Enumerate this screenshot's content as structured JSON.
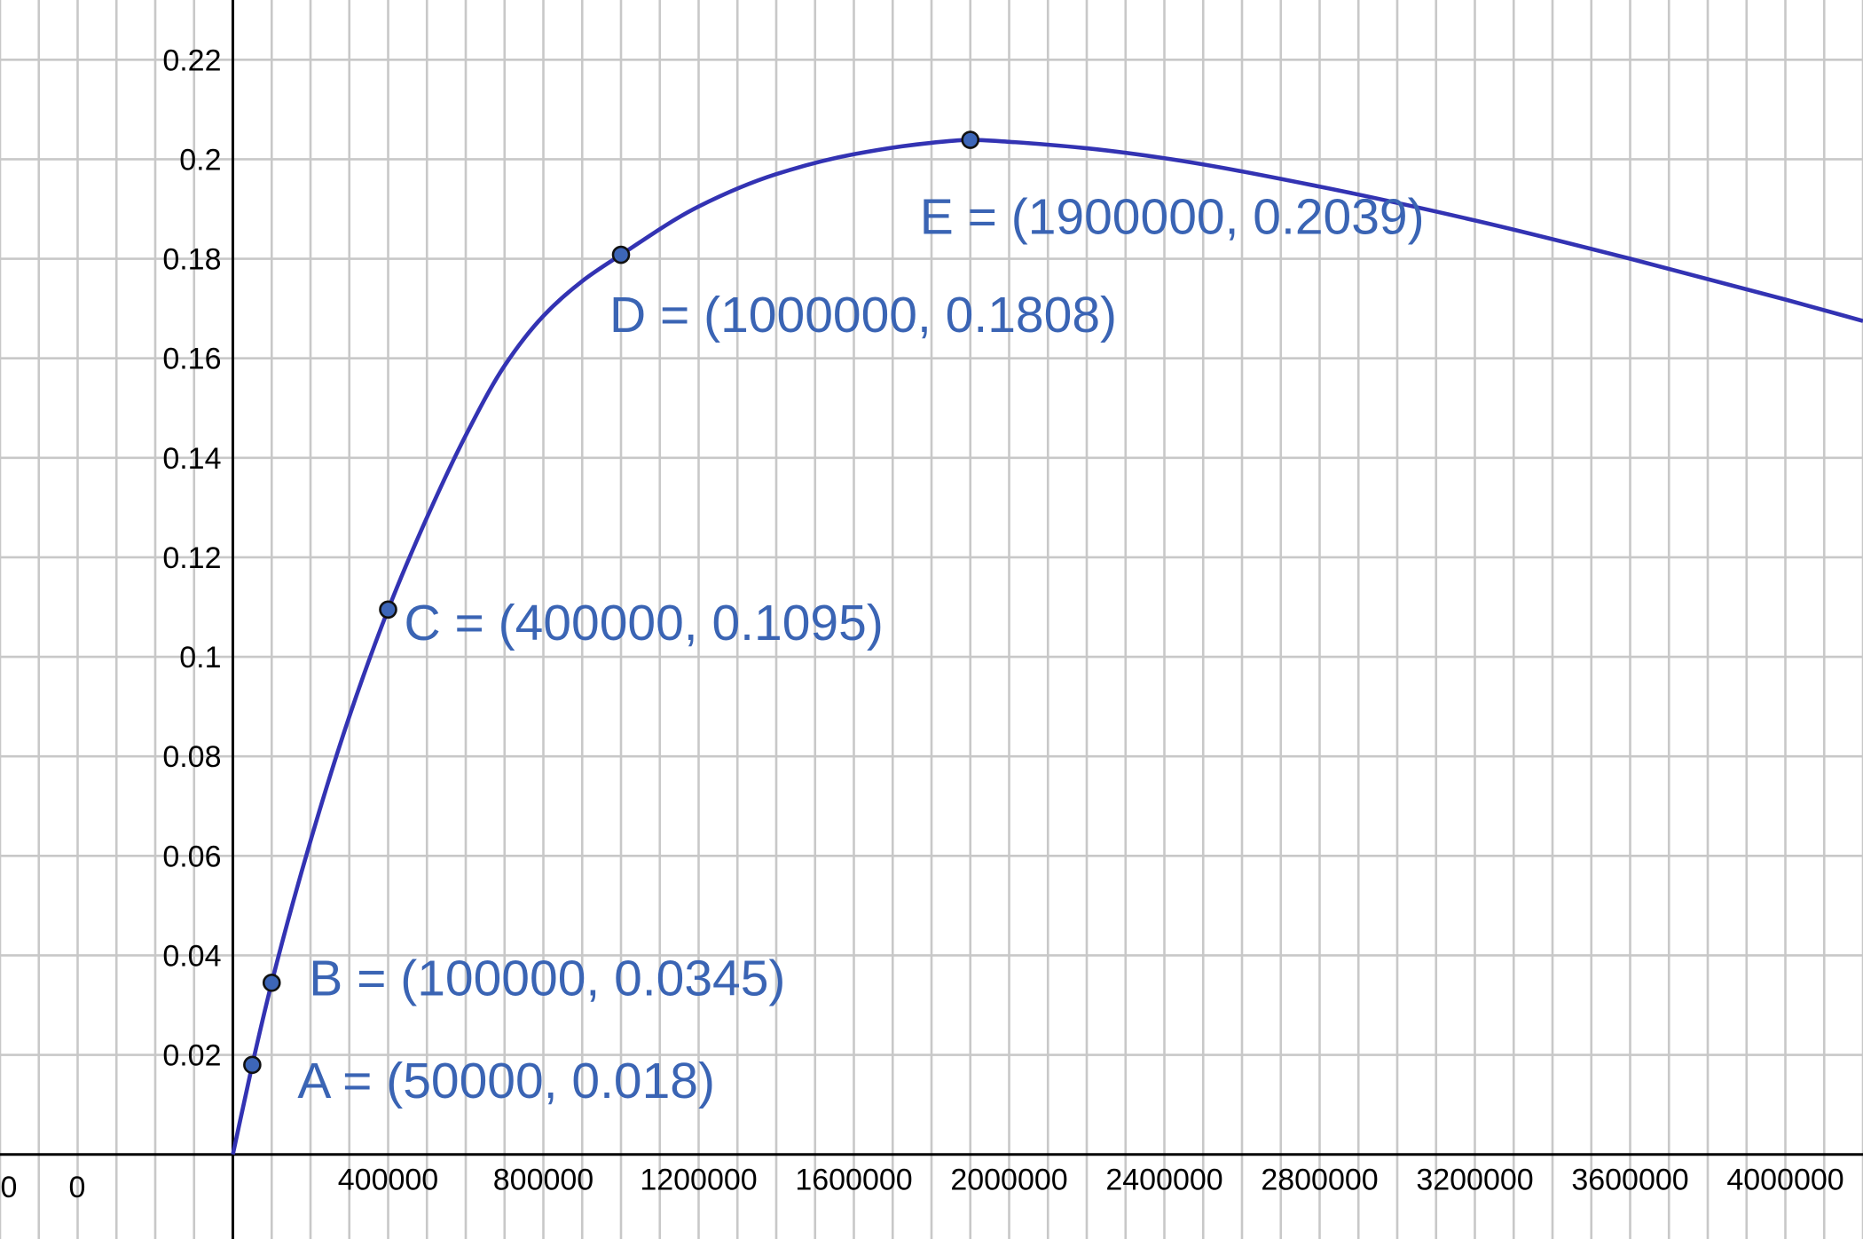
{
  "chart_data": {
    "type": "line",
    "xlim": [
      -600000,
      4200000
    ],
    "ylim": [
      -0.017,
      0.232
    ],
    "x_ticks": [
      400000,
      800000,
      1200000,
      1600000,
      2000000,
      2400000,
      2800000,
      3200000,
      3600000,
      4000000
    ],
    "x_tick_labels": [
      "400000",
      "800000",
      "1200000",
      "1600000",
      "2000000",
      "2400000",
      "2800000",
      "3200000",
      "3600000",
      "4000000"
    ],
    "y_ticks": [
      0.02,
      0.04,
      0.06,
      0.08,
      0.1,
      0.12,
      0.14,
      0.16,
      0.18,
      0.2,
      0.22
    ],
    "y_tick_labels": [
      "0.02",
      "0.04",
      "0.06",
      "0.08",
      "0.1",
      "0.12",
      "0.14",
      "0.16",
      "0.18",
      "0.2",
      "0.22"
    ],
    "origin_labels": [
      "0",
      "0"
    ],
    "grid": true,
    "series": [
      {
        "x": [
          0,
          50000,
          100000,
          200000,
          300000,
          400000,
          500000,
          600000,
          700000,
          800000,
          900000,
          1000000,
          1200000,
          1400000,
          1600000,
          1800000,
          1900000,
          2000000,
          2200000,
          2400000,
          2800000,
          3200000,
          3600000,
          4000000,
          4200000
        ],
        "y": [
          0,
          0.018,
          0.0345,
          0.063,
          0.088,
          0.1095,
          0.128,
          0.1445,
          0.1585,
          0.1685,
          0.1755,
          0.1808,
          0.1905,
          0.197,
          0.201,
          0.2033,
          0.2039,
          0.2035,
          0.2022,
          0.2002,
          0.1945,
          0.1877,
          0.18,
          0.1718,
          0.1675
        ]
      }
    ],
    "points": [
      {
        "label": "A = (50000, 0.018)",
        "x": 50000,
        "y": 0.018
      },
      {
        "label": "B = (100000, 0.0345)",
        "x": 100000,
        "y": 0.0345
      },
      {
        "label": "C = (400000, 0.1095)",
        "x": 400000,
        "y": 0.1095
      },
      {
        "label": "D = (1000000, 0.1808)",
        "x": 1000000,
        "y": 0.1808
      },
      {
        "label": "E = (1900000, 0.2039)",
        "x": 1900000,
        "y": 0.2039
      }
    ],
    "colors": {
      "curve": "#3333b3",
      "point_fill": "#3d66b8",
      "label": "#3a64b4",
      "grid": "#c8c8c8",
      "axis": "#000000"
    }
  }
}
